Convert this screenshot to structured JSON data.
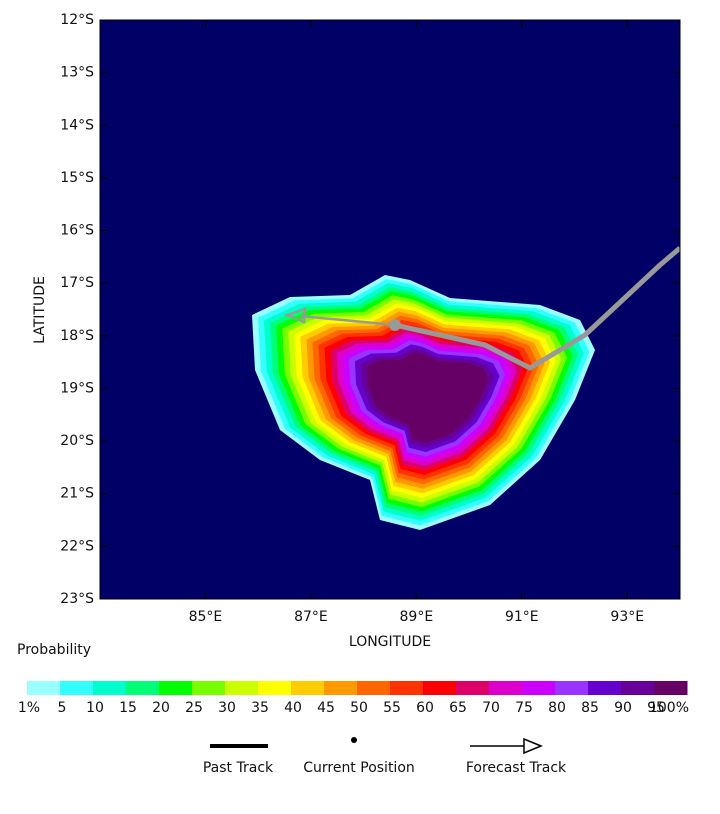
{
  "chart_data": {
    "type": "probability-map",
    "x_label": "LONGITUDE",
    "y_label": "LATITUDE",
    "xlim": [
      83,
      94
    ],
    "ylim": [
      -23,
      -12
    ],
    "xticks": [
      {
        "value": 85,
        "label": "85°E"
      },
      {
        "value": 87,
        "label": "87°E"
      },
      {
        "value": 89,
        "label": "89°E"
      },
      {
        "value": 91,
        "label": "91°E"
      },
      {
        "value": 93,
        "label": "93°E"
      }
    ],
    "yticks": [
      {
        "value": -12,
        "label": "12°S"
      },
      {
        "value": -13,
        "label": "13°S"
      },
      {
        "value": -14,
        "label": "14°S"
      },
      {
        "value": -15,
        "label": "15°S"
      },
      {
        "value": -16,
        "label": "16°S"
      },
      {
        "value": -17,
        "label": "17°S"
      },
      {
        "value": -18,
        "label": "18°S"
      },
      {
        "value": -19,
        "label": "19°S"
      },
      {
        "value": -20,
        "label": "20°S"
      },
      {
        "value": -21,
        "label": "21°S"
      },
      {
        "value": -22,
        "label": "22°S"
      },
      {
        "value": -23,
        "label": "23°S"
      }
    ],
    "background_color": "#000066",
    "colorbar": {
      "title": "Probability",
      "ticks": [
        {
          "value": 1,
          "label": "1%"
        },
        5,
        10,
        15,
        20,
        25,
        30,
        35,
        40,
        45,
        50,
        55,
        60,
        65,
        70,
        75,
        80,
        85,
        90,
        95,
        {
          "value": 100,
          "label": "100%"
        }
      ],
      "colors": [
        "#99ffff",
        "#33ffff",
        "#00ffcc",
        "#00ff77",
        "#00ff00",
        "#77ff00",
        "#ccff00",
        "#ffff00",
        "#ffcc00",
        "#ff9900",
        "#ff6600",
        "#ff3300",
        "#ff0000",
        "#dd0066",
        "#dd00cc",
        "#cc00ff",
        "#9933ff",
        "#6600cc",
        "#660099",
        "#660066"
      ]
    },
    "legend": [
      "Past Track",
      "Current Position",
      "Forecast Track"
    ]
  }
}
